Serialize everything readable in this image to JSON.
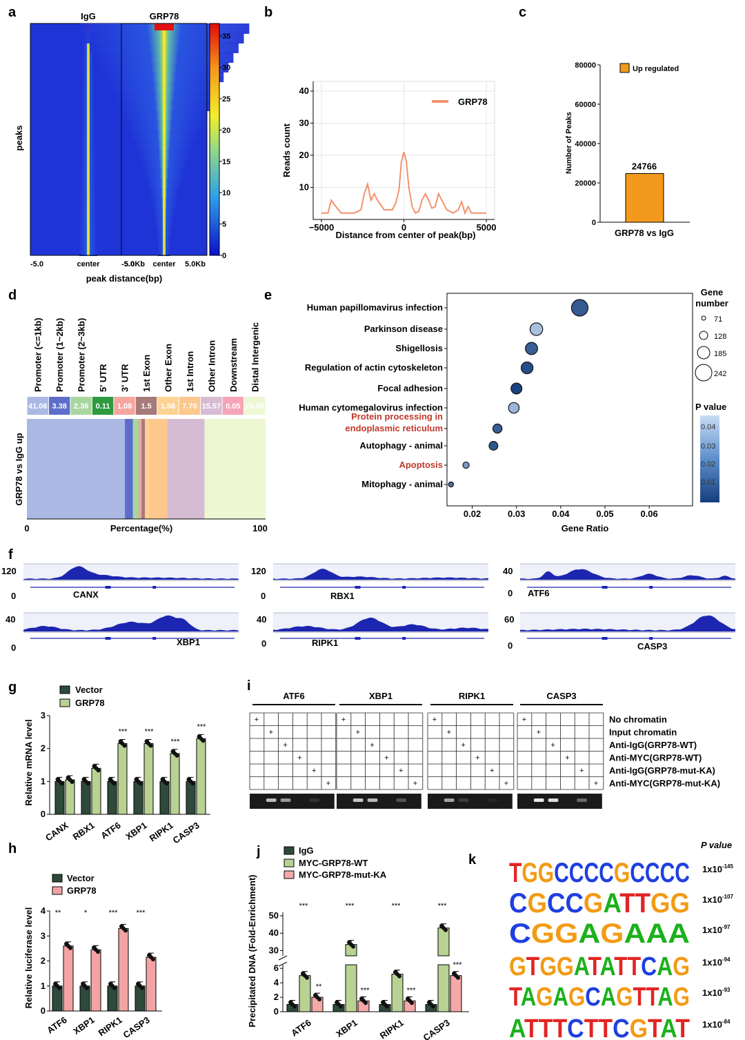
{
  "panel_labels": [
    "a",
    "b",
    "c",
    "d",
    "e",
    "f",
    "g",
    "h",
    "i",
    "j",
    "k"
  ],
  "colors": {
    "igg_bar": "#2e4a3a",
    "grp78_bar": "#b9d293",
    "luc_bar": "#f3a3a3",
    "wt_bar": "#b9d293",
    "mut_bar": "#f4a8a8",
    "orange": "#f39a1e",
    "line_grp78": "#f4916d",
    "heat_low": "#1a2fcf",
    "heat_high": "#e21010"
  },
  "chart_data": [
    {
      "id": "a",
      "type": "heatmap",
      "columns": [
        "IgG",
        "GRP78"
      ],
      "ylabel": "peaks",
      "xticks": [
        "-5.0",
        "center",
        "5.0Kb"
      ],
      "xlabel": "peak distance(bp)",
      "colorbar_ticks": [
        0,
        5,
        10,
        15,
        20,
        25,
        30,
        35
      ],
      "colorbar_range": [
        0,
        37
      ]
    },
    {
      "id": "b",
      "type": "line",
      "legend": "GRP78",
      "xlabel": "Distance from center of peak(bp)",
      "ylabel": "Reads count",
      "xlim": [
        -5500,
        5500
      ],
      "ylim": [
        0,
        43
      ],
      "xticks": [
        -5000,
        0,
        5000
      ],
      "yticks": [
        10,
        20,
        30,
        40
      ],
      "x": [
        -5000,
        -4600,
        -4400,
        -4200,
        -3800,
        -3000,
        -2600,
        -2400,
        -2200,
        -2000,
        -1800,
        -1600,
        -1400,
        -1200,
        -1000,
        -700,
        -500,
        -300,
        -150,
        0,
        150,
        300,
        500,
        700,
        900,
        1100,
        1300,
        1500,
        1700,
        1900,
        2100,
        2300,
        2600,
        3000,
        3300,
        3500,
        3700,
        3900,
        4100,
        4500,
        5000
      ],
      "y": [
        2,
        2,
        6,
        4.5,
        2,
        2,
        3,
        8,
        11,
        6,
        8,
        6,
        4.5,
        3,
        3,
        3,
        5,
        9,
        18,
        21,
        18,
        10,
        4,
        2,
        2.5,
        6,
        8,
        6,
        3.5,
        4,
        8,
        6,
        3,
        2,
        3,
        5.5,
        2,
        4,
        2,
        2,
        2
      ]
    },
    {
      "id": "c",
      "type": "bar",
      "categories": [
        "GRP78 vs IgG"
      ],
      "values": [
        24766
      ],
      "value_labels": [
        "24766"
      ],
      "legend": "Up regulated",
      "ylabel": "Number of Peaks",
      "ylim": [
        0,
        80000
      ],
      "yticks": [
        0,
        20000,
        40000,
        60000,
        80000
      ]
    },
    {
      "id": "d",
      "type": "bar",
      "orientation": "stacked-horizontal",
      "categories": [
        "Promoter (<=1kb)",
        "Promoter (1~2kb)",
        "Promoter (2~3kb)",
        "5' UTR",
        "3' UTR",
        "1st Exon",
        "Other Exon",
        "1st Intron",
        "Other Intron",
        "Downstream",
        "Distal Intergenic"
      ],
      "values": [
        41.06,
        3.38,
        2.36,
        0.11,
        1.08,
        1.5,
        1.56,
        7.78,
        15.57,
        0.05,
        25.55
      ],
      "value_labels": [
        "41.06",
        "3.38",
        "2.36",
        "0.11",
        "1.08",
        "1.5",
        "1.56",
        "7.78",
        "15.57",
        "0.05",
        "25.55"
      ],
      "colors": [
        "#aab8e3",
        "#5c6ec9",
        "#a9d6a0",
        "#2d9a3e",
        "#f5a6a0",
        "#a77a7a",
        "#fdd292",
        "#fcc88c",
        "#d6bcd2",
        "#f5a5b6",
        "#edf7d2"
      ],
      "ylabel": "GRP78 vs IgG up",
      "xlabel": "Percentage(%)",
      "xticks": [
        0,
        100
      ]
    },
    {
      "id": "e",
      "type": "scatter",
      "categories": [
        "Human papillomavirus infection",
        "Parkinson disease",
        "Shigellosis",
        "Regulation of actin cytoskeleton",
        "Focal adhesion",
        "Human cytomegalovirus infection",
        "Protein processing in endoplasmic reticulum",
        "Autophagy - animal",
        "Apoptosis",
        "Mitophagy - animal"
      ],
      "label_lines": [
        [
          "Human papillomavirus infection"
        ],
        [
          "Parkinson disease"
        ],
        [
          "Shigellosis"
        ],
        [
          "Regulation of actin cytoskeleton"
        ],
        [
          "Focal adhesion"
        ],
        [
          "Human cytomegalovirus infection"
        ],
        [
          "Protein processing in",
          "endoplasmic reticulum"
        ],
        [
          "Autophagy - animal"
        ],
        [
          "Apoptosis"
        ],
        [
          "Mitophagy - animal"
        ]
      ],
      "highlighted": [
        false,
        false,
        false,
        false,
        false,
        false,
        true,
        false,
        true,
        false
      ],
      "gene_ratio": [
        0.0443,
        0.0345,
        0.0334,
        0.0324,
        0.03,
        0.0294,
        0.0257,
        0.0248,
        0.0186,
        0.0152
      ],
      "gene_number": [
        242,
        188,
        182,
        177,
        164,
        160,
        140,
        135,
        101,
        83
      ],
      "p_value": [
        0.012,
        0.038,
        0.013,
        0.009,
        0.006,
        0.035,
        0.013,
        0.011,
        0.028,
        0.018
      ],
      "xlabel": "Gene Ratio",
      "xlim": [
        0.0143,
        0.0698
      ],
      "xticks": [
        0.02,
        0.03,
        0.04,
        0.05,
        0.06
      ],
      "xtick_labels": [
        "0.02",
        "0.03",
        "0.04",
        "0.05",
        "0.06"
      ],
      "size_legend_title": [
        "Gene",
        "number"
      ],
      "size_legend": [
        71,
        128,
        185,
        242
      ],
      "color_legend_title": "P value",
      "color_legend_ticks": [
        "0.04",
        "0.03",
        "0.02",
        "0.01"
      ]
    },
    {
      "id": "f",
      "type": "area",
      "tracks": [
        {
          "gene": "CANX",
          "ymax": "120",
          "zero": "0",
          "peaks": [
            [
              0.25,
              0.8,
              0.06
            ],
            [
              0.35,
              0.25,
              0.1
            ],
            [
              0.6,
              0.08,
              0.2
            ]
          ]
        },
        {
          "gene": "RBX1",
          "ymax": "120",
          "zero": "0",
          "peaks": [
            [
              0.23,
              0.7,
              0.06
            ],
            [
              0.4,
              0.15,
              0.1
            ],
            [
              0.8,
              0.08,
              0.15
            ]
          ]
        },
        {
          "gene": "ATF6",
          "ymax": "40",
          "zero": "0",
          "peaks": [
            [
              0.13,
              0.5,
              0.03
            ],
            [
              0.28,
              0.7,
              0.08
            ],
            [
              0.6,
              0.35,
              0.05
            ],
            [
              0.8,
              0.25,
              0.05
            ],
            [
              0.95,
              0.2,
              0.03
            ]
          ]
        },
        {
          "gene": "XBP1",
          "ymax": "40",
          "zero": "0",
          "peaks": [
            [
              0.1,
              0.25,
              0.08
            ],
            [
              0.5,
              0.5,
              0.1
            ],
            [
              0.67,
              0.85,
              0.07
            ],
            [
              0.75,
              0.4,
              0.04
            ]
          ]
        },
        {
          "gene": "RIPK1",
          "ymax": "40",
          "zero": "0",
          "peaks": [
            [
              0.15,
              0.25,
              0.1
            ],
            [
              0.45,
              0.75,
              0.08
            ],
            [
              0.65,
              0.35,
              0.08
            ],
            [
              0.9,
              0.15,
              0.1
            ]
          ]
        },
        {
          "gene": "CASP3",
          "ymax": "60",
          "zero": "0",
          "peaks": [
            [
              0.3,
              0.08,
              0.2
            ],
            [
              0.87,
              0.9,
              0.08
            ]
          ]
        }
      ]
    },
    {
      "id": "g",
      "type": "bar",
      "categories": [
        "CANX",
        "RBX1",
        "ATF6",
        "XBP1",
        "RIPK1",
        "CASP3"
      ],
      "series": [
        {
          "name": "Vector",
          "values": [
            1.0,
            1.0,
            1.0,
            1.0,
            1.0,
            1.0
          ]
        },
        {
          "name": "GRP78",
          "values": [
            1.05,
            1.4,
            2.15,
            2.15,
            1.85,
            2.3
          ]
        }
      ],
      "significance": [
        "",
        "",
        "***",
        "***",
        "***",
        "***"
      ],
      "ylabel": "Relative mRNA level",
      "ylim": [
        0,
        3
      ],
      "yticks": [
        0,
        1,
        2,
        3
      ]
    },
    {
      "id": "h",
      "type": "bar",
      "categories": [
        "ATF6",
        "XBP1",
        "RIPK1",
        "CASP3"
      ],
      "series": [
        {
          "name": "Vector",
          "values": [
            1.0,
            1.0,
            1.0,
            1.0
          ]
        },
        {
          "name": "GRP78",
          "values": [
            2.6,
            2.45,
            3.3,
            2.15
          ]
        }
      ],
      "significance": [
        "**",
        "*",
        "***",
        "***"
      ],
      "ylabel": "Relative luciferase level",
      "ylim": [
        0,
        4
      ],
      "yticks": [
        0,
        1,
        2,
        3,
        4
      ]
    },
    {
      "id": "i",
      "type": "table",
      "groups": [
        "ATF6",
        "XBP1",
        "RIPK1",
        "CASP3"
      ],
      "rows": [
        "No chromatin",
        "Input chromatin",
        "Anti-IgG(GRP78-WT)",
        "Anti-MYC(GRP78-WT)",
        "Anti-IgG(GRP78-mut-KA)",
        "Anti-MYC(GRP78-mut-KA)"
      ],
      "mark": "+",
      "band_intensity": [
        [
          0,
          0.7,
          0.55,
          0,
          0.1,
          0
        ],
        [
          0,
          0.75,
          0.7,
          0,
          0.25,
          0
        ],
        [
          0,
          0.6,
          0.15,
          0,
          0.05,
          0
        ],
        [
          0,
          0.9,
          0.85,
          0,
          0.35,
          0
        ]
      ]
    },
    {
      "id": "j",
      "type": "bar",
      "categories": [
        "ATF6",
        "XBP1",
        "RIPK1",
        "CASP3"
      ],
      "series": [
        {
          "name": "IgG",
          "values": [
            1.0,
            1.0,
            1.0,
            1.0
          ]
        },
        {
          "name": "MYC-GRP78-WT",
          "values": [
            5.0,
            33.5,
            5.2,
            43.0
          ]
        },
        {
          "name": "MYC-GRP78-mut-KA",
          "values": [
            2.0,
            1.5,
            1.5,
            5.0
          ]
        }
      ],
      "significance_wt": [
        "***",
        "***",
        "***",
        "***"
      ],
      "significance_mut": [
        "**",
        "***",
        "***",
        "***"
      ],
      "ylabel": "Precipitated DNA (Fold-Enrichment)",
      "ylim": [
        0,
        52
      ],
      "axis_break": [
        6.5,
        27
      ],
      "yticks": [
        0,
        2,
        4,
        6,
        30,
        40,
        50
      ]
    },
    {
      "id": "k",
      "type": "table",
      "title": "P value",
      "motifs": [
        {
          "sequence": "TGGCCCCGCCCC",
          "p_base": "1x10",
          "p_exp": "-145"
        },
        {
          "sequence": "CGCCGATTGG",
          "p_base": "1x10",
          "p_exp": "-107"
        },
        {
          "sequence": "CGGAGAAA",
          "p_base": "1x10",
          "p_exp": "-97"
        },
        {
          "sequence": "GTGGATATTCAG",
          "p_base": "1x10",
          "p_exp": "-94"
        },
        {
          "sequence": "TAGAGCAGTTAG",
          "p_base": "1x10",
          "p_exp": "-93"
        },
        {
          "sequence": "ATTTCTTCGTAT",
          "p_base": "1x10",
          "p_exp": "-84"
        }
      ]
    }
  ]
}
